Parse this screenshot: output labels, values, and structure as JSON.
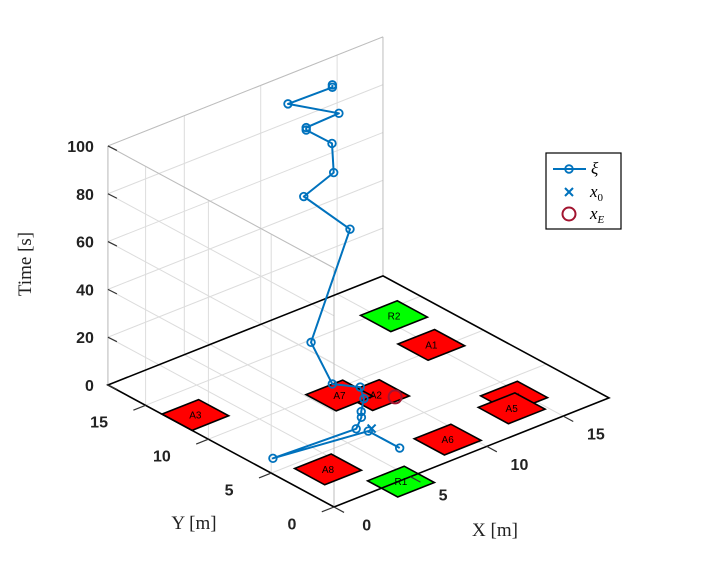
{
  "chart_data": {
    "type": "line3d",
    "xlabel": "X [m]",
    "ylabel": "Y [m]",
    "zlabel": "Time [s]",
    "xlim": [
      0,
      18
    ],
    "ylim": [
      0,
      18
    ],
    "zlim": [
      0,
      100
    ],
    "x_ticks": [
      "0",
      "5",
      "10",
      "15"
    ],
    "y_ticks": [
      "0",
      "5",
      "10",
      "15"
    ],
    "z_ticks": [
      "0",
      "20",
      "40",
      "60",
      "80",
      "100"
    ],
    "x_tick_values": [
      0,
      5,
      10,
      15
    ],
    "y_tick_values": [
      0,
      5,
      10,
      15
    ],
    "z_tick_values": [
      0,
      20,
      40,
      60,
      80,
      100
    ],
    "grid": true,
    "legend": {
      "placement": "right",
      "entries": [
        {
          "label": "ξ",
          "marker": "line-circle"
        },
        {
          "label": "x₀",
          "marker": "cross"
        },
        {
          "label": "x_E",
          "marker": "circle"
        }
      ]
    },
    "colors": {
      "trajectory": "#0072BD",
      "start": "#0072BD",
      "end": "#A2142F",
      "region_avoid": "#FF0000",
      "region_reach": "#00FF00",
      "region_edge": "#000000"
    },
    "regions": [
      {
        "label": "A1",
        "type": "avoid",
        "x": 15.0,
        "y": 10.5
      },
      {
        "label": "A2",
        "type": "avoid",
        "x": 9.4,
        "y": 8.1
      },
      {
        "label": "A3",
        "type": "avoid",
        "x": 1.2,
        "y": 12.5
      },
      {
        "label": "A4",
        "type": "avoid",
        "x": 14.5,
        "y": 3.3
      },
      {
        "label": "A5",
        "type": "avoid",
        "x": 13.6,
        "y": 2.4
      },
      {
        "label": "A6",
        "type": "avoid",
        "x": 9.0,
        "y": 1.9
      },
      {
        "label": "A7",
        "type": "avoid",
        "x": 8.0,
        "y": 9.3
      },
      {
        "label": "A8",
        "type": "avoid",
        "x": 2.4,
        "y": 3.4
      },
      {
        "label": "R1",
        "type": "reach",
        "x": 4.3,
        "y": -0.1
      },
      {
        "label": "R2",
        "type": "reach",
        "x": 15.6,
        "y": 14.2
      }
    ],
    "series": [
      {
        "name": "ξ",
        "points": [
          {
            "x": 6.6,
            "y": 2.8,
            "z": 0
          },
          {
            "x": 6.6,
            "y": 5.3,
            "z": 0
          },
          {
            "x": 1.1,
            "y": 6.2,
            "z": 0
          },
          {
            "x": 6.3,
            "y": 5.9,
            "z": 0
          },
          {
            "x": 7.3,
            "y": 6.7,
            "z": 0
          },
          {
            "x": 7.7,
            "y": 7.2,
            "z": 0
          },
          {
            "x": 8.7,
            "y": 8.2,
            "z": 0
          },
          {
            "x": 8.7,
            "y": 8.5,
            "z": 4
          },
          {
            "x": 7.7,
            "y": 9.5,
            "z": 5
          },
          {
            "x": 6.8,
            "y": 10.1,
            "z": 23
          },
          {
            "x": 10.5,
            "y": 11.5,
            "z": 57
          },
          {
            "x": 9.2,
            "y": 13.6,
            "z": 68
          },
          {
            "x": 10.5,
            "y": 12.8,
            "z": 77
          },
          {
            "x": 10.8,
            "y": 13.3,
            "z": 87
          },
          {
            "x": 10.1,
            "y": 14.5,
            "z": 91
          },
          {
            "x": 10.1,
            "y": 14.5,
            "z": 92
          },
          {
            "x": 11.5,
            "y": 13.6,
            "z": 97
          },
          {
            "x": 9.4,
            "y": 15.1,
            "z": 102
          },
          {
            "x": 11.4,
            "y": 14.0,
            "z": 107
          },
          {
            "x": 11.4,
            "y": 14.0,
            "z": 108
          }
        ]
      }
    ],
    "start_point": {
      "x": 6.9,
      "y": 5.4,
      "z": 0
    },
    "end_point": {
      "x": 10.0,
      "y": 7.3,
      "z": 0
    }
  }
}
